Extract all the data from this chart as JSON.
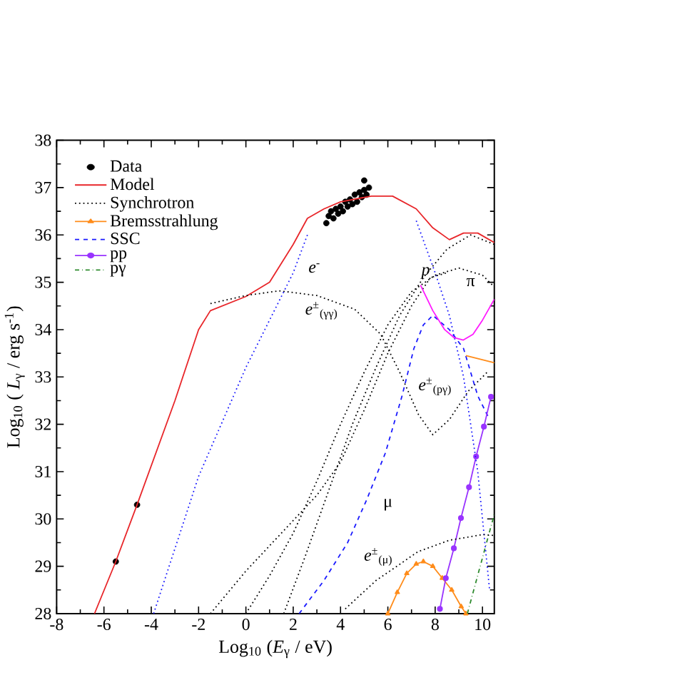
{
  "chart_data": {
    "type": "line",
    "xlabel": "Log$_{10}$ (*E*$_{γ}$ / eV)",
    "ylabel": "Log$_{10}$ ( *L*$_{γ}$ / erg s$^{-1}$)",
    "xlim": [
      -8,
      10.5
    ],
    "ylim": [
      28,
      38
    ],
    "xticks": [
      -8,
      -6,
      -4,
      -2,
      0,
      2,
      4,
      6,
      8,
      10
    ],
    "yticks": [
      28,
      29,
      30,
      31,
      32,
      33,
      34,
      35,
      36,
      37,
      38
    ],
    "legend": "top left",
    "grid": false,
    "series": [
      {
        "name": "Data",
        "type": "scatter",
        "marker": "circle",
        "color": "#000000",
        "x": [
          -5.5,
          -4.6,
          3.4,
          3.5,
          3.6,
          3.7,
          3.8,
          3.9,
          4.0,
          4.1,
          4.2,
          4.3,
          4.4,
          4.5,
          4.6,
          4.7,
          4.8,
          4.9,
          5.0,
          5.1,
          5.2,
          5.0
        ],
        "values": [
          29.1,
          30.3,
          36.25,
          36.4,
          36.5,
          36.35,
          36.55,
          36.45,
          36.6,
          36.5,
          36.7,
          36.6,
          36.75,
          36.65,
          36.85,
          36.7,
          36.9,
          36.8,
          36.95,
          36.85,
          37.0,
          37.15
        ]
      },
      {
        "name": "Model",
        "color": "#e8262a",
        "line_style": "solid",
        "x": [
          -6.4,
          -5.5,
          -4.6,
          -3,
          -2,
          -1.5,
          0,
          1,
          2,
          2.6,
          3.3,
          4,
          5.3,
          6.2,
          7.2,
          7.9,
          8.6,
          9.2,
          9.8,
          10.5
        ],
        "values": [
          28,
          29.1,
          30.3,
          32.5,
          34.0,
          34.4,
          34.7,
          35.0,
          35.8,
          36.35,
          36.55,
          36.7,
          36.82,
          36.82,
          36.55,
          36.15,
          35.9,
          36.04,
          36.04,
          35.84
        ]
      },
      {
        "name": "Synchrotron",
        "color": "#000000",
        "line_style": "dotted",
        "x": [
          -1.5,
          0,
          1.4,
          3,
          4.6,
          5.7,
          6.5,
          7.3,
          7.9,
          8.6,
          9.4,
          10.2
        ],
        "values": [
          34.55,
          34.72,
          34.82,
          34.72,
          34.43,
          33.9,
          33.1,
          32.2,
          31.78,
          32.1,
          32.7,
          33.1
        ]
      },
      {
        "name": "Bremsstrahlung",
        "color": "#ff8c1a",
        "line_style": "solid",
        "marker": "triangle",
        "x": [
          6.0,
          6.4,
          6.8,
          7.2,
          7.5,
          7.9,
          8.3,
          8.7,
          9.1,
          9.3
        ],
        "values": [
          28,
          28.45,
          28.85,
          29.05,
          29.1,
          29.0,
          28.75,
          28.5,
          28.15,
          28
        ]
      },
      {
        "name": "SSC",
        "color": "#1a1aff",
        "line_style": "dashed",
        "x": [
          2.25,
          3.3,
          4.3,
          5.1,
          5.9,
          6.6,
          7.1,
          7.5,
          7.9,
          8.6,
          9.2,
          9.8,
          10.3
        ],
        "values": [
          28,
          28.7,
          29.5,
          30.4,
          31.4,
          32.6,
          33.6,
          34.1,
          34.3,
          34.0,
          33.6,
          32.6,
          32.1
        ]
      },
      {
        "name": "pp",
        "color": "#9933ff",
        "line_style": "solid",
        "marker": "circle",
        "x": [
          8.2,
          8.45,
          8.79,
          9.09,
          9.43,
          9.73,
          10.06,
          10.36
        ],
        "values": [
          28.1,
          28.75,
          29.38,
          30.02,
          30.67,
          31.32,
          31.95,
          32.58
        ]
      },
      {
        "name": "pγ",
        "color": "#2e8b2e",
        "line_style": "dashdot",
        "x": [
          9.36,
          10.5
        ],
        "values": [
          28,
          30.1
        ]
      },
      {
        "color": "#1a1aff",
        "line_style": "dotted",
        "x": [
          -3.9,
          -2,
          0,
          1,
          2,
          2.6
        ],
        "values": [
          28,
          30.9,
          33.2,
          34.2,
          35.2,
          36.0
        ]
      },
      {
        "color": "#1a1aff",
        "line_style": "dotted",
        "x": [
          7.2,
          8,
          8.6,
          9.2,
          9.8,
          10.3
        ],
        "values": [
          36.3,
          35.2,
          34.3,
          33.0,
          31.0,
          28.5
        ]
      },
      {
        "color": "#000000",
        "line_style": "dotted",
        "x": [
          -1.5,
          0,
          1.5,
          3,
          4,
          5,
          6,
          7,
          7.8,
          8.5
        ],
        "values": [
          28,
          28.9,
          29.7,
          30.5,
          31.2,
          32.3,
          33.5,
          34.5,
          35.1,
          35.2
        ]
      },
      {
        "color": "#000000",
        "line_style": "dotted",
        "x": [
          0,
          1,
          2,
          3,
          4,
          5,
          6,
          7,
          8,
          9,
          10,
          10.5
        ],
        "values": [
          28,
          28.8,
          29.7,
          30.8,
          32,
          33.1,
          34.1,
          34.8,
          35.15,
          35.3,
          35.15,
          34.9
        ]
      },
      {
        "color": "#000000",
        "line_style": "dotted",
        "x": [
          1.6,
          2.5,
          3.5,
          4.5,
          5.5,
          6.5,
          7.5,
          8.5,
          9.5,
          10.5
        ],
        "values": [
          28,
          29.2,
          30.6,
          32,
          33.2,
          34.3,
          35.1,
          35.7,
          36.0,
          35.8
        ]
      },
      {
        "color": "#000000",
        "line_style": "dotted",
        "x": [
          4.2,
          5.5,
          7.28,
          8.6,
          10.0,
          10.5
        ],
        "values": [
          28.1,
          28.7,
          29.31,
          29.55,
          29.67,
          29.65
        ]
      },
      {
        "color": "#ff8c1a",
        "line_style": "solid",
        "x": [
          9.3,
          10.5
        ],
        "values": [
          33.45,
          33.3
        ]
      },
      {
        "color": "#ff1aff",
        "line_style": "solid",
        "x": [
          7.38,
          7.9,
          8.4,
          8.8,
          9.19,
          9.6,
          10.0,
          10.5
        ],
        "values": [
          34.94,
          34.4,
          34.0,
          33.83,
          33.78,
          33.9,
          34.2,
          34.64
        ]
      }
    ],
    "annotations": [
      "*e*$^{-}$",
      "*e*$^{±}$$_{(γγ)}$",
      "*p*",
      "π",
      "*e*$^{±}$$_{(pγ)}$",
      "μ",
      "*e*$^{±}$$_{(μ)}$"
    ]
  }
}
